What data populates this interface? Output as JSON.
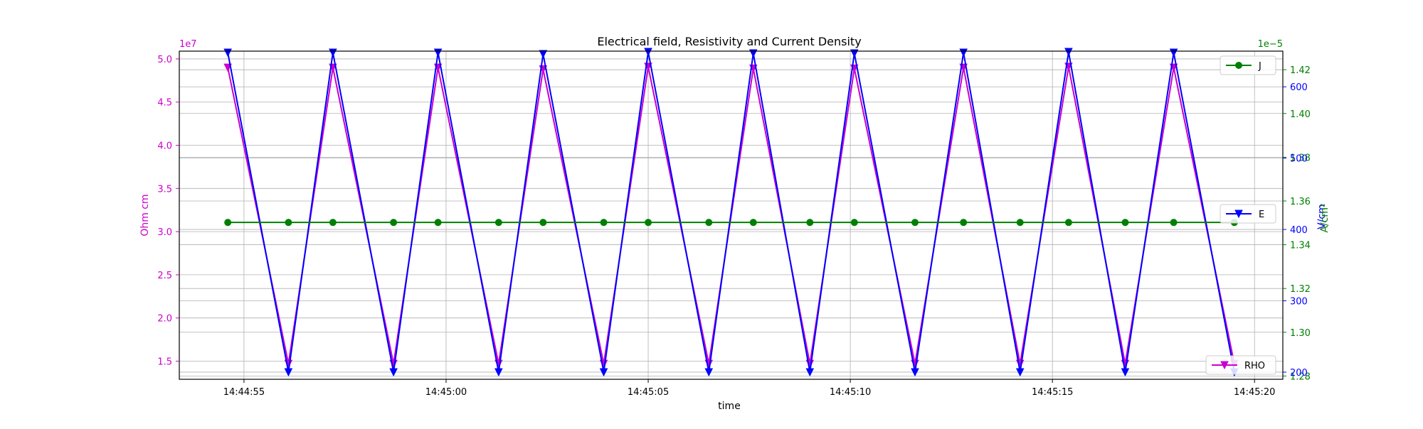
{
  "chart_data": {
    "type": "line",
    "title": "Electrical field, Resistivity and Current Density",
    "xlabel": "time",
    "x_tick_labels": [
      "14:44:55",
      "14:45:00",
      "14:45:05",
      "14:45:10",
      "14:45:15",
      "14:45:20"
    ],
    "x_ticks": [
      "14:44:55",
      "14:45:00",
      "14:45:05",
      "14:45:10",
      "14:45:15",
      "14:45:20"
    ],
    "xlim": [
      "14:44:53.4",
      "14:45:20.7"
    ],
    "grid": true,
    "axes": {
      "rho": {
        "label": "Ohm cm",
        "color": "#cc00cc",
        "scale_note": "1e7",
        "ylim": [
          1.29,
          5.09
        ],
        "ticks": [
          1.5,
          2.0,
          2.5,
          3.0,
          3.5,
          4.0,
          4.5,
          5.0
        ],
        "tick_labels": [
          "1.5",
          "2.0",
          "2.5",
          "3.0",
          "3.5",
          "4.0",
          "4.5",
          "5.0"
        ]
      },
      "e": {
        "label": "V/cm",
        "color": "#0000ff",
        "ylim": [
          190,
          650
        ],
        "ticks": [
          200,
          300,
          400,
          500,
          600
        ],
        "tick_labels": [
          "200",
          "300",
          "400",
          "500",
          "600"
        ]
      },
      "j": {
        "label": "A/cm²",
        "color": "#008000",
        "scale_note": "1e−5",
        "ylim": [
          1.2785,
          1.4285
        ],
        "ticks": [
          1.28,
          1.3,
          1.32,
          1.34,
          1.36,
          1.38,
          1.4,
          1.42
        ],
        "tick_labels": [
          "1.28",
          "1.30",
          "1.32",
          "1.34",
          "1.36",
          "1.38",
          "1.40",
          "1.42"
        ]
      }
    },
    "series": [
      {
        "name": "RHO",
        "axis": "rho",
        "color": "#cc00cc",
        "marker": "triangle-down",
        "x": [
          "14:44:54.6",
          "14:44:56.1",
          "14:44:57.2",
          "14:44:58.7",
          "14:44:59.8",
          "14:45:01.3",
          "14:45:02.4",
          "14:45:03.9",
          "14:45:05.0",
          "14:45:06.5",
          "14:45:07.6",
          "14:45:09.0",
          "14:45:10.1",
          "14:45:11.6",
          "14:45:12.8",
          "14:45:14.2",
          "14:45:15.4",
          "14:45:16.8",
          "14:45:18.0",
          "14:45:19.5"
        ],
        "values": [
          4.9,
          1.47,
          4.9,
          1.47,
          4.9,
          1.47,
          4.88,
          1.47,
          4.91,
          1.47,
          4.89,
          1.47,
          4.89,
          1.47,
          4.9,
          1.47,
          4.91,
          1.47,
          4.9,
          1.47
        ]
      },
      {
        "name": "E",
        "axis": "e",
        "color": "#0000ff",
        "marker": "triangle-down",
        "x": [
          "14:44:54.6",
          "14:44:56.1",
          "14:44:57.2",
          "14:44:58.7",
          "14:44:59.8",
          "14:45:01.3",
          "14:45:02.4",
          "14:45:03.9",
          "14:45:05.0",
          "14:45:06.5",
          "14:45:07.6",
          "14:45:09.0",
          "14:45:10.1",
          "14:45:11.6",
          "14:45:12.8",
          "14:45:14.2",
          "14:45:15.4",
          "14:45:16.8",
          "14:45:18.0",
          "14:45:19.5"
        ],
        "values": [
          648,
          200,
          648,
          200,
          648,
          200,
          646,
          200,
          649,
          200,
          647,
          200,
          647,
          200,
          648,
          200,
          649,
          200,
          648,
          200
        ]
      },
      {
        "name": "J",
        "axis": "j",
        "color": "#008000",
        "marker": "circle",
        "x": [
          "14:44:54.6",
          "14:44:56.1",
          "14:44:57.2",
          "14:44:58.7",
          "14:44:59.8",
          "14:45:01.3",
          "14:45:02.4",
          "14:45:03.9",
          "14:45:05.0",
          "14:45:06.5",
          "14:45:07.6",
          "14:45:09.0",
          "14:45:10.1",
          "14:45:11.6",
          "14:45:12.8",
          "14:45:14.2",
          "14:45:15.4",
          "14:45:16.8",
          "14:45:18.0",
          "14:45:19.5"
        ],
        "values": [
          1.3502,
          1.3502,
          1.3502,
          1.3502,
          1.3502,
          1.3502,
          1.3502,
          1.3502,
          1.3502,
          1.3502,
          1.3502,
          1.3502,
          1.3502,
          1.3502,
          1.3502,
          1.3502,
          1.3502,
          1.3502,
          1.3502,
          1.3502
        ]
      }
    ],
    "legends": [
      {
        "label": "J",
        "series": "J",
        "placement": "upper right"
      },
      {
        "label": "E",
        "series": "E",
        "placement": "center right"
      },
      {
        "label": "RHO",
        "series": "RHO",
        "placement": "lower right"
      }
    ]
  }
}
